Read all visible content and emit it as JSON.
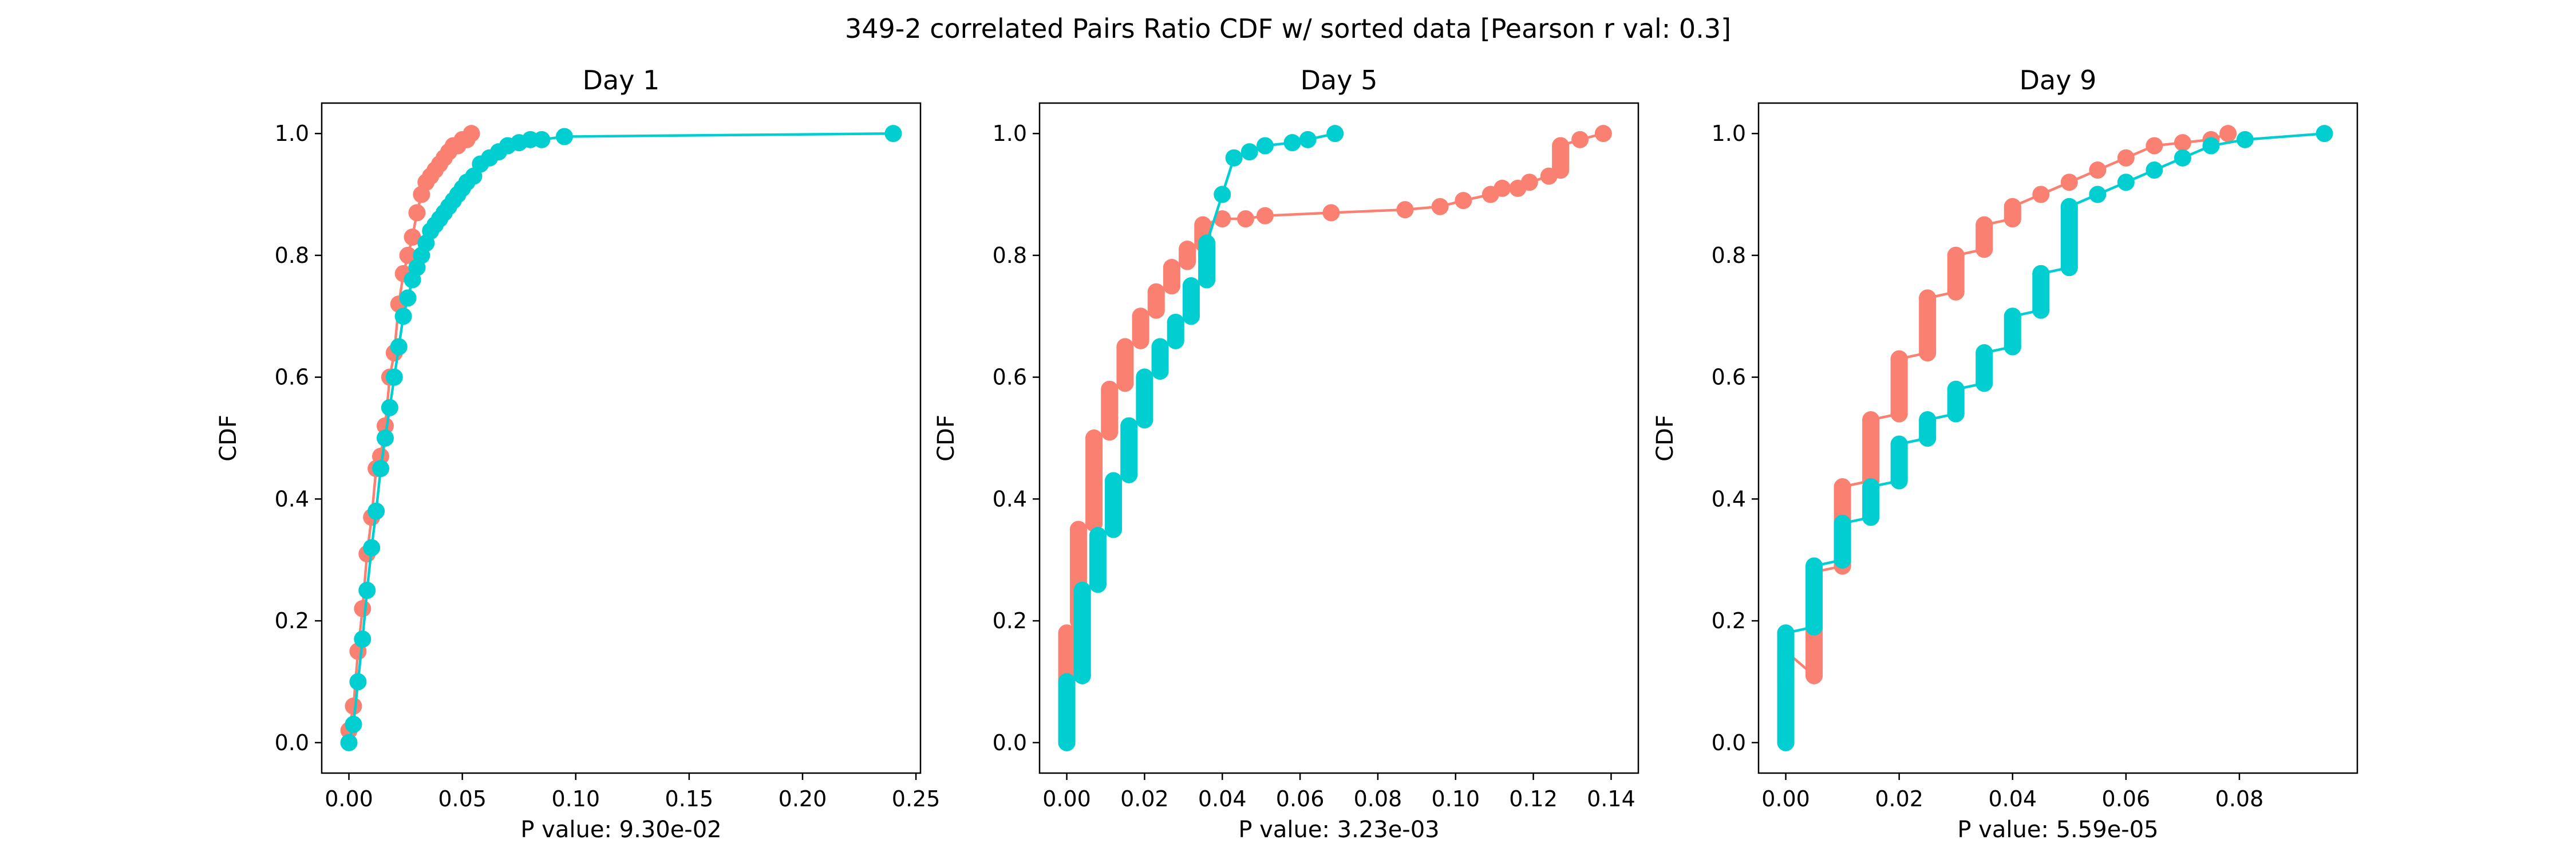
{
  "figure": {
    "title": "349-2 correlated Pairs Ratio CDF w/ sorted data [Pearson r val: 0.3]"
  },
  "colors": {
    "series_a": "#fa8072",
    "series_b": "#00ced1"
  },
  "chart_data": [
    {
      "type": "line",
      "title": "Day 1",
      "xlabel": "P value: 9.30e-02",
      "ylabel": "CDF",
      "xlim": [
        -0.012,
        0.252
      ],
      "ylim": [
        -0.05,
        1.05
      ],
      "xticks": [
        "0.00",
        "0.05",
        "0.10",
        "0.15",
        "0.20",
        "0.25"
      ],
      "xtick_values": [
        0,
        0.05,
        0.1,
        0.15,
        0.2,
        0.25
      ],
      "yticks": [
        "0.0",
        "0.2",
        "0.4",
        "0.6",
        "0.8",
        "1.0"
      ],
      "ytick_values": [
        0,
        0.2,
        0.4,
        0.6,
        0.8,
        1.0
      ],
      "grid": false,
      "series": [
        {
          "color": "#fa8072",
          "x": [
            0,
            0.002,
            0.004,
            0.006,
            0.008,
            0.01,
            0.012,
            0.014,
            0.016,
            0.018,
            0.02,
            0.022,
            0.024,
            0.026,
            0.028,
            0.03,
            0.032,
            0.034,
            0.036,
            0.038,
            0.04,
            0.042,
            0.044,
            0.046,
            0.048,
            0.05,
            0.052,
            0.054
          ],
          "y": [
            0.02,
            0.06,
            0.15,
            0.22,
            0.31,
            0.37,
            0.45,
            0.47,
            0.52,
            0.6,
            0.64,
            0.72,
            0.77,
            0.8,
            0.83,
            0.87,
            0.9,
            0.92,
            0.93,
            0.94,
            0.95,
            0.96,
            0.97,
            0.98,
            0.98,
            0.99,
            0.99,
            1.0
          ]
        },
        {
          "color": "#00ced1",
          "x": [
            0,
            0.002,
            0.004,
            0.006,
            0.008,
            0.01,
            0.012,
            0.014,
            0.016,
            0.018,
            0.02,
            0.022,
            0.024,
            0.026,
            0.028,
            0.03,
            0.032,
            0.034,
            0.036,
            0.038,
            0.04,
            0.042,
            0.044,
            0.046,
            0.048,
            0.05,
            0.052,
            0.055,
            0.058,
            0.062,
            0.066,
            0.07,
            0.075,
            0.08,
            0.085,
            0.095,
            0.24
          ],
          "y": [
            0.0,
            0.03,
            0.1,
            0.17,
            0.25,
            0.32,
            0.38,
            0.45,
            0.5,
            0.55,
            0.6,
            0.65,
            0.7,
            0.73,
            0.76,
            0.78,
            0.8,
            0.82,
            0.84,
            0.85,
            0.86,
            0.87,
            0.88,
            0.89,
            0.9,
            0.91,
            0.92,
            0.93,
            0.95,
            0.96,
            0.97,
            0.98,
            0.985,
            0.99,
            0.99,
            0.995,
            1.0
          ]
        }
      ]
    },
    {
      "type": "line",
      "title": "Day 5",
      "xlabel": "P value: 3.23e-03",
      "ylabel": "CDF",
      "xlim": [
        -0.007,
        0.147
      ],
      "ylim": [
        -0.05,
        1.05
      ],
      "xticks": [
        "0.00",
        "0.02",
        "0.04",
        "0.06",
        "0.08",
        "0.10",
        "0.12",
        "0.14"
      ],
      "xtick_values": [
        0,
        0.02,
        0.04,
        0.06,
        0.08,
        0.1,
        0.12,
        0.14
      ],
      "yticks": [
        "0.0",
        "0.2",
        "0.4",
        "0.6",
        "0.8",
        "1.0"
      ],
      "ytick_values": [
        0,
        0.2,
        0.4,
        0.6,
        0.8,
        1.0
      ],
      "grid": false,
      "series": [
        {
          "color": "#fa8072",
          "x": [
            0,
            0,
            0.003,
            0.003,
            0.007,
            0.007,
            0.011,
            0.011,
            0.015,
            0.015,
            0.019,
            0.019,
            0.023,
            0.023,
            0.027,
            0.027,
            0.031,
            0.031,
            0.035,
            0.035,
            0.04,
            0.046,
            0.051,
            0.068,
            0.087,
            0.096,
            0.102,
            0.109,
            0.112,
            0.116,
            0.119,
            0.124,
            0.127,
            0.127,
            0.132,
            0.138
          ],
          "y": [
            0.1,
            0.18,
            0.2,
            0.35,
            0.36,
            0.5,
            0.51,
            0.58,
            0.59,
            0.65,
            0.66,
            0.7,
            0.71,
            0.74,
            0.75,
            0.78,
            0.79,
            0.81,
            0.82,
            0.85,
            0.86,
            0.86,
            0.865,
            0.87,
            0.875,
            0.88,
            0.89,
            0.9,
            0.91,
            0.91,
            0.92,
            0.93,
            0.94,
            0.98,
            0.99,
            1.0
          ]
        },
        {
          "color": "#00ced1",
          "x": [
            0,
            0,
            0.004,
            0.004,
            0.008,
            0.008,
            0.012,
            0.012,
            0.016,
            0.016,
            0.02,
            0.02,
            0.024,
            0.024,
            0.028,
            0.028,
            0.032,
            0.032,
            0.036,
            0.036,
            0.04,
            0.043,
            0.047,
            0.051,
            0.058,
            0.062,
            0.069
          ],
          "y": [
            0.0,
            0.1,
            0.11,
            0.25,
            0.26,
            0.34,
            0.35,
            0.43,
            0.44,
            0.52,
            0.53,
            0.6,
            0.61,
            0.65,
            0.66,
            0.69,
            0.7,
            0.75,
            0.76,
            0.82,
            0.9,
            0.96,
            0.97,
            0.98,
            0.985,
            0.99,
            1.0
          ]
        }
      ]
    },
    {
      "type": "line",
      "title": "Day 9",
      "xlabel": "P value: 5.59e-05",
      "ylabel": "CDF",
      "xlim": [
        -0.0048,
        0.1008
      ],
      "ylim": [
        -0.05,
        1.05
      ],
      "xticks": [
        "0.00",
        "0.02",
        "0.04",
        "0.06",
        "0.08"
      ],
      "xtick_values": [
        0,
        0.02,
        0.04,
        0.06,
        0.08
      ],
      "yticks": [
        "0.0",
        "0.2",
        "0.4",
        "0.6",
        "0.8",
        "1.0"
      ],
      "ytick_values": [
        0,
        0.2,
        0.4,
        0.6,
        0.8,
        1.0
      ],
      "grid": false,
      "series": [
        {
          "color": "#fa8072",
          "x": [
            0,
            0,
            0.005,
            0.005,
            0.01,
            0.01,
            0.015,
            0.015,
            0.02,
            0.02,
            0.025,
            0.025,
            0.03,
            0.03,
            0.035,
            0.035,
            0.04,
            0.04,
            0.045,
            0.05,
            0.055,
            0.06,
            0.065,
            0.07,
            0.075,
            0.078
          ],
          "y": [
            0.1,
            0.15,
            0.11,
            0.28,
            0.29,
            0.42,
            0.43,
            0.53,
            0.54,
            0.63,
            0.64,
            0.73,
            0.74,
            0.8,
            0.81,
            0.85,
            0.86,
            0.88,
            0.9,
            0.92,
            0.94,
            0.96,
            0.98,
            0.985,
            0.99,
            1.0
          ]
        },
        {
          "color": "#00ced1",
          "x": [
            0,
            0,
            0.005,
            0.005,
            0.01,
            0.01,
            0.015,
            0.015,
            0.02,
            0.02,
            0.025,
            0.025,
            0.03,
            0.03,
            0.035,
            0.035,
            0.04,
            0.04,
            0.045,
            0.045,
            0.05,
            0.05,
            0.055,
            0.06,
            0.065,
            0.07,
            0.075,
            0.081,
            0.095
          ],
          "y": [
            0.0,
            0.18,
            0.19,
            0.29,
            0.3,
            0.36,
            0.37,
            0.42,
            0.43,
            0.49,
            0.5,
            0.53,
            0.54,
            0.58,
            0.59,
            0.64,
            0.65,
            0.7,
            0.71,
            0.77,
            0.78,
            0.88,
            0.9,
            0.92,
            0.94,
            0.96,
            0.98,
            0.99,
            1.0
          ]
        }
      ]
    }
  ]
}
